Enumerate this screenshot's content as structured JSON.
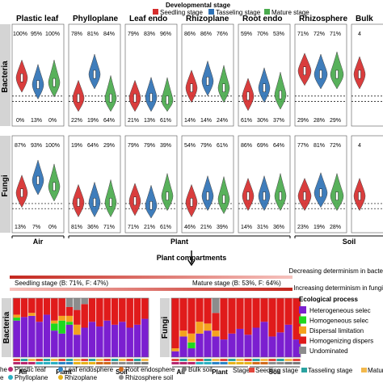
{
  "chart_data": {
    "type": "violin",
    "legend": {
      "title": "Developmental stage",
      "items": [
        {
          "name": "Seedling stage",
          "color": "#d62d2d"
        },
        {
          "name": "Tasseling stage",
          "color": "#2f72b6"
        },
        {
          "name": "Mature stage",
          "color": "#4aab4e"
        }
      ]
    },
    "compartments": [
      "Plastic leaf",
      "Phylloplane",
      "Leaf endo",
      "Rhizoplane",
      "Root endo",
      "Rhizosphere",
      "Bulk"
    ],
    "rows": [
      {
        "label": "Bacteria",
        "top_pct": [
          [
            "100%",
            "95%",
            "100%"
          ],
          [
            "78%",
            "81%",
            "84%"
          ],
          [
            "79%",
            "83%",
            "96%"
          ],
          [
            "86%",
            "86%",
            "76%"
          ],
          [
            "59%",
            "70%",
            "53%"
          ],
          [
            "71%",
            "72%",
            "71%"
          ],
          [
            "4",
            ""
          ]
        ],
        "bottom_pct": [
          [
            "0%",
            "13%",
            "0%"
          ],
          [
            "22%",
            "19%",
            "64%"
          ],
          [
            "21%",
            "13%",
            "61%"
          ],
          [
            "14%",
            "14%",
            "24%"
          ],
          [
            "61%",
            "30%",
            "37%"
          ],
          [
            "29%",
            "28%",
            "29%"
          ],
          [
            "",
            ""
          ]
        ],
        "median": [
          [
            0.45,
            0.35,
            0.38
          ],
          [
            0.15,
            0.5,
            0.15
          ],
          [
            0.15,
            0.16,
            0.12
          ],
          [
            0.3,
            0.4,
            0.3
          ],
          [
            0.18,
            0.3,
            0.2
          ],
          [
            0.55,
            0.5,
            0.5
          ],
          [
            0.5
          ]
        ]
      },
      {
        "label": "Fungi",
        "top_pct": [
          [
            "87%",
            "93%",
            "100%"
          ],
          [
            "19%",
            "64%",
            "29%"
          ],
          [
            "79%",
            "79%",
            "39%"
          ],
          [
            "54%",
            "79%",
            "61%"
          ],
          [
            "86%",
            "69%",
            "64%"
          ],
          [
            "77%",
            "81%",
            "72%"
          ],
          [
            "4",
            ""
          ]
        ],
        "bottom_pct": [
          [
            "13%",
            "7%",
            "0%"
          ],
          [
            "81%",
            "36%",
            "71%"
          ],
          [
            "71%",
            "21%",
            "61%"
          ],
          [
            "46%",
            "21%",
            "39%"
          ],
          [
            "14%",
            "31%",
            "36%"
          ],
          [
            "23%",
            "19%",
            "28%"
          ],
          [
            "",
            ""
          ]
        ],
        "median": [
          [
            0.35,
            0.55,
            0.45
          ],
          [
            0.2,
            0.2,
            0.2
          ],
          [
            0.22,
            0.15,
            0.3
          ],
          [
            0.2,
            0.3,
            0.25
          ],
          [
            0.3,
            0.3,
            0.3
          ],
          [
            0.3,
            0.35,
            0.3
          ],
          [
            0.3
          ]
        ]
      }
    ],
    "x_groups": [
      {
        "name": "Air",
        "span": [
          0,
          0
        ]
      },
      {
        "name": "Plant",
        "span": [
          1,
          4
        ]
      },
      {
        "name": "Soil",
        "span": [
          5,
          6
        ]
      }
    ],
    "x_title": "Plant compartments",
    "arrow_text": {
      "bacteria": "Decreasing determinism in bacte",
      "seedling": "Seedling stage (B: 71%, F: 47%)",
      "mature": "Mature stage (B: 53%, F: 64%)",
      "fungi": "Increasing determinism in fungi"
    },
    "process_legend": {
      "title": "Ecological process",
      "items": [
        {
          "name": "Heterogeneous selec",
          "color": "#7b1fd0"
        },
        {
          "name": "Homogeneous selec",
          "color": "#1fd81f"
        },
        {
          "name": "Dispersal limitation",
          "color": "#f4a21e"
        },
        {
          "name": "Homogenizing dispers",
          "color": "#e01b1b"
        },
        {
          "name": "Undominated",
          "color": "#8c8c8c"
        }
      ]
    },
    "stacked": {
      "bacteria": {
        "label": "Bacteria",
        "bars": [
          [
            0.62,
            0.05,
            0.05,
            0.28,
            0.0
          ],
          [
            0.68,
            0.0,
            0.0,
            0.32,
            0.0
          ],
          [
            0.7,
            0.0,
            0.05,
            0.25,
            0.0
          ],
          [
            0.6,
            0.0,
            0.0,
            0.4,
            0.0
          ],
          [
            0.72,
            0.0,
            0.0,
            0.28,
            0.0
          ],
          [
            0.45,
            0.12,
            0.05,
            0.38,
            0.0
          ],
          [
            0.4,
            0.22,
            0.08,
            0.3,
            0.0
          ],
          [
            0.55,
            0.05,
            0.1,
            0.15,
            0.15
          ],
          [
            0.38,
            0.0,
            0.17,
            0.25,
            0.2
          ],
          [
            0.5,
            0.0,
            0.0,
            0.4,
            0.1
          ],
          [
            0.6,
            0.0,
            0.0,
            0.4,
            0.0
          ],
          [
            0.52,
            0.0,
            0.0,
            0.48,
            0.0
          ],
          [
            0.62,
            0.0,
            0.0,
            0.38,
            0.0
          ],
          [
            0.55,
            0.0,
            0.0,
            0.45,
            0.0
          ],
          [
            0.6,
            0.0,
            0.0,
            0.4,
            0.0
          ],
          [
            0.5,
            0.0,
            0.0,
            0.5,
            0.0
          ],
          [
            0.55,
            0.0,
            0.0,
            0.45,
            0.0
          ],
          [
            0.65,
            0.0,
            0.0,
            0.35,
            0.0
          ]
        ],
        "groups": [
          "Air",
          "Plant",
          "Soil"
        ]
      },
      "fungi": {
        "label": "Fungi",
        "bars": [
          [
            0.1,
            0.0,
            0.05,
            0.85,
            0.0
          ],
          [
            0.35,
            0.0,
            0.1,
            0.55,
            0.0
          ],
          [
            0.15,
            0.1,
            0.15,
            0.6,
            0.0
          ],
          [
            0.4,
            0.0,
            0.2,
            0.4,
            0.0
          ],
          [
            0.45,
            0.0,
            0.12,
            0.43,
            0.0
          ],
          [
            0.35,
            0.0,
            0.1,
            0.3,
            0.25
          ],
          [
            0.3,
            0.0,
            0.0,
            0.7,
            0.0
          ],
          [
            0.4,
            0.0,
            0.0,
            0.6,
            0.0
          ],
          [
            0.48,
            0.0,
            0.0,
            0.52,
            0.0
          ],
          [
            0.38,
            0.0,
            0.0,
            0.62,
            0.0
          ],
          [
            0.5,
            0.0,
            0.0,
            0.5,
            0.0
          ],
          [
            0.6,
            0.0,
            0.0,
            0.4,
            0.0
          ],
          [
            0.35,
            0.0,
            0.0,
            0.65,
            0.0
          ],
          [
            0.42,
            0.0,
            0.0,
            0.58,
            0.0
          ],
          [
            0.55,
            0.0,
            0.0,
            0.45,
            0.0
          ],
          [
            0.3,
            0.0,
            0.0,
            0.7,
            0.0
          ]
        ],
        "groups": [
          "Air",
          "Plant",
          "Soil"
        ]
      }
    },
    "bottom_legend": {
      "compartment_items": [
        {
          "name": "he",
          "color": "#f08a8a",
          "shape": "square"
        },
        {
          "name": "Plastic leaf",
          "color": "#b7286e",
          "shape": "circle"
        },
        {
          "name": "Leaf endosphere",
          "color": "#2c84c6",
          "shape": "circle"
        },
        {
          "name": "Root endosphere",
          "color": "#d26b1c",
          "shape": "circle"
        },
        {
          "name": "Bulk soil",
          "color": "#7a7a7a",
          "shape": "circle"
        },
        {
          "name": "e",
          "color": "#cfcfcf",
          "shape": "square"
        },
        {
          "name": "Phylloplane",
          "color": "#2bb0c2",
          "shape": "circle"
        },
        {
          "name": "Rhizoplane",
          "color": "#e6b21b",
          "shape": "circle"
        },
        {
          "name": "Rhizosphere soil",
          "color": "#8c8c8c",
          "shape": "circle"
        }
      ],
      "stage_items": [
        {
          "name": "Stage",
          "color": null
        },
        {
          "name": "Seedling stage",
          "color": "#e2463c"
        },
        {
          "name": "Tasseling stage",
          "color": "#2aa2a0"
        },
        {
          "name": "Mature",
          "color": "#f2b84b"
        }
      ]
    }
  }
}
